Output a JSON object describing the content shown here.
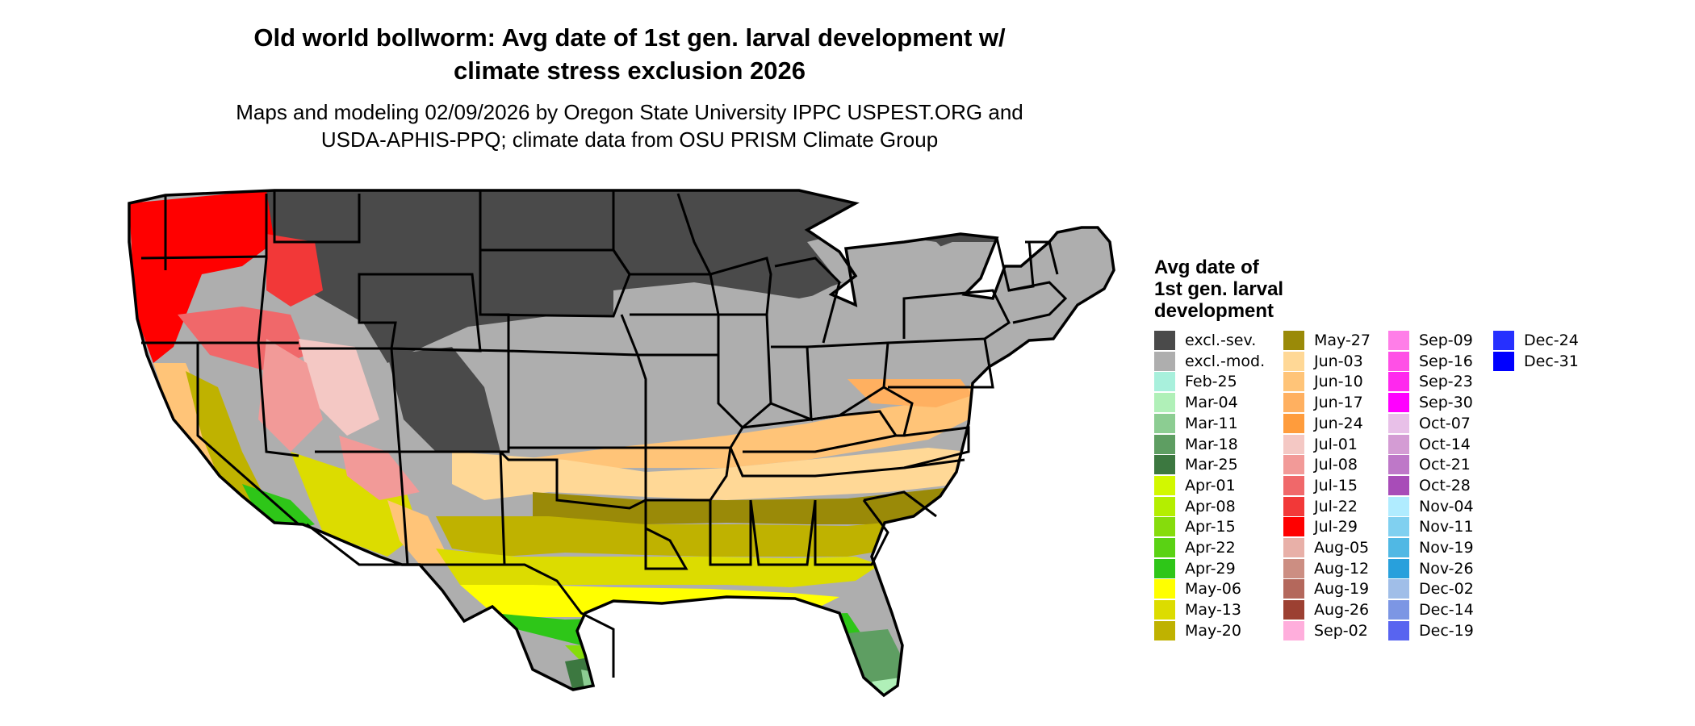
{
  "header": {
    "title_line1": "Old world bollworm: Avg date of 1st gen. larval development w/",
    "title_line2": "climate stress exclusion 2026",
    "subtitle_line1": "Maps and modeling 02/09/2026 by Oregon State University IPPC USPEST.ORG and",
    "subtitle_line2": "USDA-APHIS-PPQ; climate data from OSU PRISM Climate Group"
  },
  "legend": {
    "title_line1": "Avg date of",
    "title_line2": "1st gen. larval",
    "title_line3": "development",
    "columns": [
      [
        {
          "label": "excl.-sev.",
          "color": "#4a4a4a"
        },
        {
          "label": "excl.-mod.",
          "color": "#aeaeae"
        },
        {
          "label": "Feb-25",
          "color": "#a8f0dc"
        },
        {
          "label": "Mar-04",
          "color": "#b0f0b8"
        },
        {
          "label": "Mar-11",
          "color": "#8ccd92"
        },
        {
          "label": "Mar-18",
          "color": "#5e9e62"
        },
        {
          "label": "Mar-25",
          "color": "#3c7840"
        },
        {
          "label": "Apr-01",
          "color": "#d2f800"
        },
        {
          "label": "Apr-08",
          "color": "#b4ee00"
        },
        {
          "label": "Apr-15",
          "color": "#86dc0c"
        },
        {
          "label": "Apr-22",
          "color": "#5ad214"
        },
        {
          "label": "Apr-29",
          "color": "#2ec618"
        },
        {
          "label": "May-06",
          "color": "#ffff00"
        },
        {
          "label": "May-13",
          "color": "#dcdc00"
        },
        {
          "label": "May-20",
          "color": "#bfb200"
        }
      ],
      [
        {
          "label": "May-27",
          "color": "#9a8a08"
        },
        {
          "label": "Jun-03",
          "color": "#ffd896"
        },
        {
          "label": "Jun-10",
          "color": "#ffc478"
        },
        {
          "label": "Jun-17",
          "color": "#ffb060"
        },
        {
          "label": "Jun-24",
          "color": "#ff9c3c"
        },
        {
          "label": "Jul-01",
          "color": "#f4c8c4"
        },
        {
          "label": "Jul-08",
          "color": "#f29a98"
        },
        {
          "label": "Jul-15",
          "color": "#f0686a"
        },
        {
          "label": "Jul-22",
          "color": "#f23838"
        },
        {
          "label": "Jul-29",
          "color": "#ff0000"
        },
        {
          "label": "Aug-05",
          "color": "#e8b0a8"
        },
        {
          "label": "Aug-12",
          "color": "#cc8e82"
        },
        {
          "label": "Aug-19",
          "color": "#b4685c"
        },
        {
          "label": "Aug-26",
          "color": "#9c4032"
        },
        {
          "label": "Sep-02",
          "color": "#ffaedc"
        }
      ],
      [
        {
          "label": "Sep-09",
          "color": "#ff7ee8"
        },
        {
          "label": "Sep-16",
          "color": "#ff50e6"
        },
        {
          "label": "Sep-23",
          "color": "#ff28ee"
        },
        {
          "label": "Sep-30",
          "color": "#ff00ff"
        },
        {
          "label": "Oct-07",
          "color": "#e8c0e8"
        },
        {
          "label": "Oct-14",
          "color": "#d49cd4"
        },
        {
          "label": "Oct-21",
          "color": "#be78c8"
        },
        {
          "label": "Oct-28",
          "color": "#a84cb8"
        },
        {
          "label": "Nov-04",
          "color": "#b0ecff"
        },
        {
          "label": "Nov-11",
          "color": "#80d0f0"
        },
        {
          "label": "Nov-19",
          "color": "#50b8e4"
        },
        {
          "label": "Nov-26",
          "color": "#28a0dc"
        },
        {
          "label": "Dec-02",
          "color": "#a0bee8"
        },
        {
          "label": "Dec-14",
          "color": "#7c96e4"
        },
        {
          "label": "Dec-19",
          "color": "#5864f0"
        }
      ],
      [
        {
          "label": "Dec-24",
          "color": "#2630ff"
        },
        {
          "label": "Dec-31",
          "color": "#0000ff"
        }
      ]
    ]
  }
}
